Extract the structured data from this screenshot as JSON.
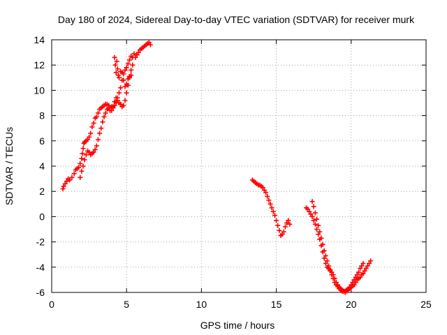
{
  "chart_data": {
    "type": "scatter",
    "title": "Day 180 of 2024, Sidereal Day-to-day VTEC variation (SDTVAR) for receiver murk",
    "xlabel": "GPS time / hours",
    "ylabel": "SDTVAR / TECUs",
    "xlim": [
      0,
      25
    ],
    "ylim": [
      -6,
      14
    ],
    "xticks": [
      0,
      5,
      10,
      15,
      20,
      25
    ],
    "yticks": [
      -6,
      -4,
      -2,
      0,
      2,
      4,
      6,
      8,
      10,
      12,
      14
    ],
    "grid": true,
    "legend": "none",
    "marker": "+",
    "series_color": "#ff0000",
    "series": [
      {
        "x": [
          0.75,
          0.8,
          0.9,
          1.0,
          1.1,
          1.2,
          1.35,
          1.5,
          1.6,
          1.7,
          1.8,
          1.9,
          2.0,
          2.05,
          2.1,
          2.15,
          2.2,
          2.3,
          2.4,
          2.5,
          2.6,
          2.7,
          2.8,
          2.9,
          3.0,
          3.1,
          3.2,
          3.3,
          3.4,
          3.5,
          3.6,
          3.7,
          3.8,
          3.9,
          4.0,
          4.1,
          4.2,
          4.3,
          4.4,
          4.5,
          4.6,
          4.7,
          4.8,
          4.9,
          5.0,
          5.1,
          5.2,
          5.3,
          5.4,
          5.5,
          5.6,
          5.7,
          5.8,
          5.9,
          6.0,
          6.1,
          6.2,
          6.3,
          6.4,
          6.5,
          6.6
        ],
        "y": [
          2.2,
          2.4,
          2.6,
          2.8,
          3.0,
          2.9,
          3.1,
          3.4,
          3.7,
          3.8,
          3.9,
          4.2,
          4.6,
          5.0,
          5.4,
          5.8,
          5.9,
          6.0,
          6.1,
          6.3,
          6.6,
          7.1,
          7.4,
          7.8,
          7.9,
          8.2,
          8.5,
          8.6,
          8.7,
          8.8,
          8.9,
          8.9,
          8.8,
          8.6,
          8.7,
          8.6,
          8.8,
          9.0,
          9.4,
          9.8,
          10.2,
          10.8,
          11.3,
          11.6,
          11.8,
          12.1,
          12.4,
          12.7,
          12.6,
          12.9,
          12.6,
          12.8,
          13.0,
          13.2,
          13.3,
          13.4,
          13.5,
          13.6,
          13.7,
          13.8,
          13.6
        ]
      },
      {
        "x": [
          1.9,
          2.0,
          2.1,
          2.2,
          2.3,
          2.4,
          2.5,
          2.6,
          2.7,
          2.8,
          2.9,
          3.0,
          3.1,
          3.2,
          3.3,
          3.4,
          3.5,
          3.6,
          3.7,
          3.8,
          3.9,
          4.0,
          4.1,
          4.2,
          4.3,
          4.4,
          4.5,
          4.6,
          4.7,
          4.8,
          4.9,
          5.0,
          5.1,
          5.2,
          5.3,
          5.4
        ],
        "y": [
          3.1,
          3.6,
          4.0,
          4.5,
          4.9,
          5.2,
          5.1,
          4.9,
          5.0,
          5.1,
          5.3,
          5.6,
          6.1,
          6.6,
          7.0,
          7.5,
          7.9,
          8.2,
          8.5,
          8.6,
          8.4,
          8.4,
          8.7,
          9.1,
          9.4,
          9.2,
          9.0,
          8.9,
          8.7,
          8.8,
          9.2,
          9.8,
          10.4,
          11.1,
          11.6,
          12.0
        ]
      },
      {
        "x": [
          4.2,
          4.25,
          4.3,
          4.35,
          4.4,
          4.45,
          4.5,
          4.6,
          4.7,
          4.8,
          4.9,
          5.0,
          5.1,
          5.2,
          5.3
        ],
        "y": [
          12.6,
          12.0,
          11.4,
          12.3,
          11.7,
          11.2,
          11.0,
          11.5,
          11.4,
          10.8,
          10.3,
          10.5,
          10.9,
          11.0,
          11.2
        ]
      },
      {
        "x": [
          13.4,
          13.5,
          13.6,
          13.7,
          13.8,
          13.9,
          14.0,
          14.1,
          14.2,
          14.3,
          14.4,
          14.5,
          14.6,
          14.7,
          14.8,
          14.9,
          15.0,
          15.1,
          15.2,
          15.3,
          15.4,
          15.5,
          15.6,
          15.7,
          15.8,
          15.9
        ],
        "y": [
          2.9,
          2.8,
          2.7,
          2.6,
          2.5,
          2.5,
          2.4,
          2.3,
          2.1,
          1.9,
          1.6,
          1.3,
          1.0,
          0.7,
          0.4,
          0.1,
          -0.3,
          -0.7,
          -1.1,
          -1.5,
          -1.4,
          -1.2,
          -0.8,
          -0.5,
          -0.3,
          -0.6
        ]
      },
      {
        "x": [
          17.0,
          17.1,
          17.2,
          17.3,
          17.4,
          17.5,
          17.6,
          17.7,
          17.8,
          17.9,
          18.0,
          18.1,
          18.2,
          18.3,
          18.4,
          18.5,
          18.6,
          18.7,
          18.8,
          18.9,
          19.0,
          19.1,
          19.2,
          19.3,
          19.4,
          19.5,
          19.6,
          19.7,
          19.8,
          19.9,
          20.0,
          20.1,
          20.2,
          20.3,
          20.4,
          20.5,
          20.6,
          20.7,
          20.8
        ],
        "y": [
          0.7,
          0.6,
          0.4,
          0.2,
          0.0,
          -0.3,
          -0.6,
          -1.0,
          -1.4,
          -1.8,
          -2.3,
          -2.8,
          -3.3,
          -3.7,
          -4.0,
          -4.1,
          -4.2,
          -4.4,
          -4.6,
          -4.9,
          -5.2,
          -5.4,
          -5.6,
          -5.7,
          -5.8,
          -5.9,
          -5.9,
          -5.8,
          -5.7,
          -5.6,
          -5.4,
          -5.2,
          -5.0,
          -4.8,
          -4.6,
          -4.4,
          -4.1,
          -3.9,
          -3.7
        ]
      },
      {
        "x": [
          17.4,
          17.5,
          17.6,
          17.7,
          17.8,
          17.9,
          18.0,
          18.1,
          18.2,
          18.3,
          18.4,
          18.5,
          18.6,
          18.7,
          18.8,
          18.9,
          19.0,
          19.1,
          19.2,
          19.3,
          19.4,
          19.5,
          19.6,
          19.7,
          19.8,
          19.9,
          20.0,
          20.1,
          20.2,
          20.3,
          20.4,
          20.5,
          20.6,
          20.7,
          20.8,
          20.9,
          21.0,
          21.1,
          21.2,
          21.3
        ],
        "y": [
          1.2,
          0.8,
          0.3,
          -0.2,
          -0.7,
          -1.2,
          -1.7,
          -2.2,
          -2.7,
          -3.1,
          -3.5,
          -3.9,
          -4.3,
          -4.6,
          -4.9,
          -5.2,
          -5.4,
          -5.5,
          -5.7,
          -5.8,
          -5.9,
          -5.9,
          -6.0,
          -5.9,
          -5.8,
          -5.7,
          -5.6,
          -5.5,
          -5.4,
          -5.2,
          -5.0,
          -4.9,
          -4.8,
          -4.6,
          -4.5,
          -4.3,
          -4.1,
          -3.9,
          -3.7,
          -3.5
        ]
      }
    ]
  }
}
